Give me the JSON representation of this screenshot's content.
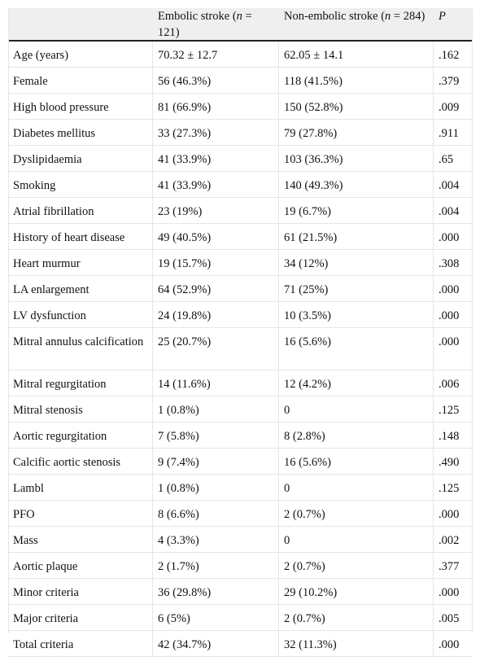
{
  "header": {
    "col1": "",
    "col2_prefix": "Embolic stroke (",
    "col2_n": "n",
    "col2_suffix": " = 121)",
    "col3_prefix": "Non-embolic stroke (",
    "col3_n": "n",
    "col3_suffix": " = 284)",
    "col4": "P"
  },
  "rows": [
    {
      "label": "Age (years)",
      "embolic": "70.32 ± 12.7",
      "nonembolic": "62.05 ± 14.1",
      "p": ".162"
    },
    {
      "label": "Female",
      "embolic": "56 (46.3%)",
      "nonembolic": "118 (41.5%)",
      "p": ".379"
    },
    {
      "label": "High blood pressure",
      "embolic": "81 (66.9%)",
      "nonembolic": "150 (52.8%)",
      "p": ".009"
    },
    {
      "label": "Diabetes mellitus",
      "embolic": "33 (27.3%)",
      "nonembolic": "79 (27.8%)",
      "p": ".911"
    },
    {
      "label": "Dyslipidaemia",
      "embolic": "41 (33.9%)",
      "nonembolic": "103 (36.3%)",
      "p": ".65"
    },
    {
      "label": "Smoking",
      "embolic": "41 (33.9%)",
      "nonembolic": "140 (49.3%)",
      "p": ".004"
    },
    {
      "label": "Atrial fibrillation",
      "embolic": "23 (19%)",
      "nonembolic": "19 (6.7%)",
      "p": ".004"
    },
    {
      "label": "History of heart disease",
      "embolic": "49 (40.5%)",
      "nonembolic": "61 (21.5%)",
      "p": ".000"
    },
    {
      "label": "Heart murmur",
      "embolic": "19 (15.7%)",
      "nonembolic": "34 (12%)",
      "p": ".308"
    },
    {
      "label": "LA enlargement",
      "embolic": "64 (52.9%)",
      "nonembolic": "71 (25%)",
      "p": ".000"
    },
    {
      "label": "LV dysfunction",
      "embolic": "24 (19.8%)",
      "nonembolic": "10 (3.5%)",
      "p": ".000"
    },
    {
      "label": "Mitral annulus calcification",
      "embolic": "25 (20.7%)",
      "nonembolic": "16 (5.6%)",
      "p": ".000"
    },
    {
      "label": "Mitral regurgitation",
      "embolic": "14 (11.6%)",
      "nonembolic": "12 (4.2%)",
      "p": ".006"
    },
    {
      "label": "Mitral stenosis",
      "embolic": "1 (0.8%)",
      "nonembolic": "0",
      "p": ".125"
    },
    {
      "label": "Aortic regurgitation",
      "embolic": "7 (5.8%)",
      "nonembolic": "8 (2.8%)",
      "p": ".148"
    },
    {
      "label": "Calcific aortic stenosis",
      "embolic": "9 (7.4%)",
      "nonembolic": "16 (5.6%)",
      "p": ".490"
    },
    {
      "label": "Lambl",
      "embolic": "1 (0.8%)",
      "nonembolic": "0",
      "p": ".125"
    },
    {
      "label": "PFO",
      "embolic": "8 (6.6%)",
      "nonembolic": "2 (0.7%)",
      "p": ".000"
    },
    {
      "label": "Mass",
      "embolic": "4 (3.3%)",
      "nonembolic": "0",
      "p": ".002"
    },
    {
      "label": "Aortic plaque",
      "embolic": "2 (1.7%)",
      "nonembolic": "2 (0.7%)",
      "p": ".377"
    },
    {
      "label": "Minor criteria",
      "embolic": "36 (29.8%)",
      "nonembolic": "29 (10.2%)",
      "p": ".000"
    },
    {
      "label": "Major criteria",
      "embolic": "6 (5%)",
      "nonembolic": "2 (0.7%)",
      "p": ".005"
    },
    {
      "label": "Total criteria",
      "embolic": "42 (34.7%)",
      "nonembolic": "32 (11.3%)",
      "p": ".000"
    }
  ]
}
